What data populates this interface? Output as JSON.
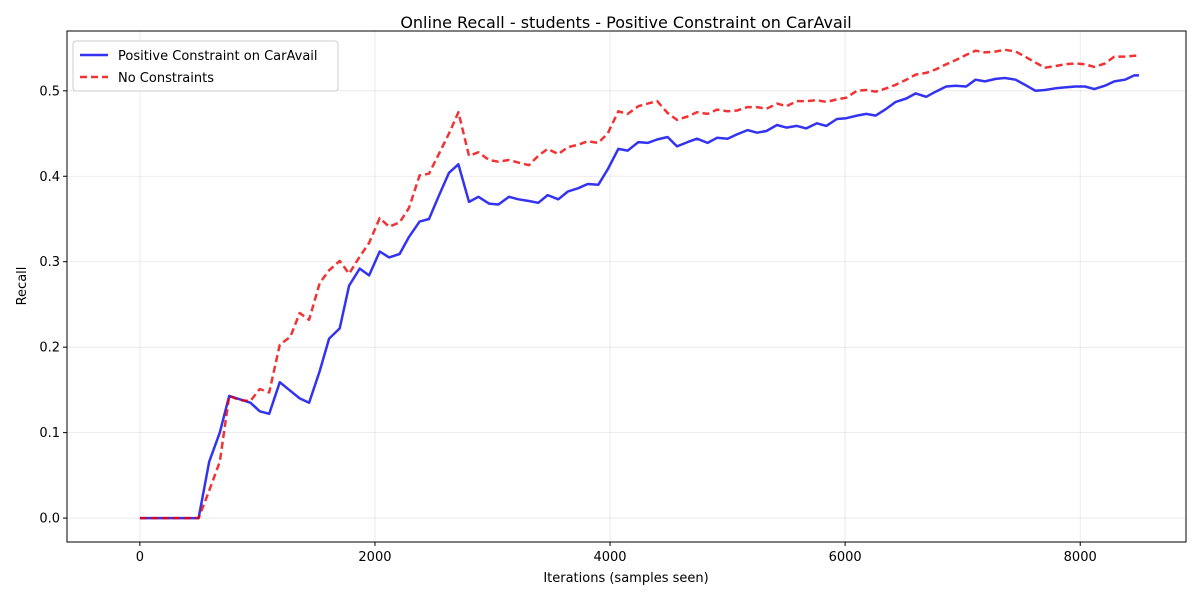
{
  "chart_data": {
    "type": "line",
    "title": "Online Recall - students - Positive Constraint on CarAvail",
    "xlabel": "Iterations (samples seen)",
    "ylabel": "Recall",
    "xlim": [
      -620,
      8900
    ],
    "ylim": [
      -0.028,
      0.57
    ],
    "xticks": [
      0,
      2000,
      4000,
      6000,
      8000
    ],
    "xtick_labels": [
      "0",
      "2000",
      "4000",
      "6000",
      "8000"
    ],
    "yticks": [
      0.0,
      0.1,
      0.2,
      0.3,
      0.4,
      0.5
    ],
    "ytick_labels": [
      "0.0",
      "0.1",
      "0.2",
      "0.3",
      "0.4",
      "0.5"
    ],
    "grid": true,
    "legend_position": "upper-left",
    "series": [
      {
        "name": "Positive Constraint on CarAvail",
        "color": "#0000ee",
        "style": "solid",
        "points": [
          [
            0,
            0
          ],
          [
            100,
            0
          ],
          [
            200,
            0
          ],
          [
            300,
            0
          ],
          [
            400,
            0
          ],
          [
            500,
            0
          ],
          [
            590,
            0.066
          ],
          [
            680,
            0.1
          ],
          [
            760,
            0.143
          ],
          [
            850,
            0.139
          ],
          [
            940,
            0.135
          ],
          [
            1020,
            0.125
          ],
          [
            1100,
            0.122
          ],
          [
            1190,
            0.159
          ],
          [
            1280,
            0.149
          ],
          [
            1360,
            0.14
          ],
          [
            1440,
            0.135
          ],
          [
            1530,
            0.172
          ],
          [
            1610,
            0.21
          ],
          [
            1700,
            0.222
          ],
          [
            1780,
            0.272
          ],
          [
            1870,
            0.292
          ],
          [
            1950,
            0.284
          ],
          [
            2040,
            0.312
          ],
          [
            2120,
            0.305
          ],
          [
            2210,
            0.309
          ],
          [
            2290,
            0.329
          ],
          [
            2380,
            0.347
          ],
          [
            2460,
            0.35
          ],
          [
            2540,
            0.376
          ],
          [
            2630,
            0.404
          ],
          [
            2710,
            0.414
          ],
          [
            2800,
            0.37
          ],
          [
            2880,
            0.376
          ],
          [
            2970,
            0.368
          ],
          [
            3050,
            0.367
          ],
          [
            3140,
            0.376
          ],
          [
            3220,
            0.373
          ],
          [
            3310,
            0.371
          ],
          [
            3390,
            0.369
          ],
          [
            3470,
            0.378
          ],
          [
            3560,
            0.373
          ],
          [
            3640,
            0.382
          ],
          [
            3730,
            0.386
          ],
          [
            3810,
            0.391
          ],
          [
            3900,
            0.39
          ],
          [
            3980,
            0.408
          ],
          [
            4070,
            0.432
          ],
          [
            4150,
            0.43
          ],
          [
            4240,
            0.44
          ],
          [
            4320,
            0.439
          ],
          [
            4400,
            0.443
          ],
          [
            4490,
            0.446
          ],
          [
            4570,
            0.435
          ],
          [
            4660,
            0.44
          ],
          [
            4740,
            0.444
          ],
          [
            4830,
            0.439
          ],
          [
            4910,
            0.445
          ],
          [
            5000,
            0.444
          ],
          [
            5080,
            0.449
          ],
          [
            5170,
            0.454
          ],
          [
            5250,
            0.451
          ],
          [
            5330,
            0.453
          ],
          [
            5420,
            0.46
          ],
          [
            5500,
            0.457
          ],
          [
            5590,
            0.459
          ],
          [
            5670,
            0.456
          ],
          [
            5760,
            0.462
          ],
          [
            5840,
            0.459
          ],
          [
            5930,
            0.467
          ],
          [
            6010,
            0.468
          ],
          [
            6100,
            0.471
          ],
          [
            6180,
            0.473
          ],
          [
            6260,
            0.471
          ],
          [
            6350,
            0.479
          ],
          [
            6430,
            0.487
          ],
          [
            6520,
            0.491
          ],
          [
            6600,
            0.497
          ],
          [
            6690,
            0.493
          ],
          [
            6770,
            0.499
          ],
          [
            6860,
            0.505
          ],
          [
            6940,
            0.506
          ],
          [
            7030,
            0.505
          ],
          [
            7110,
            0.513
          ],
          [
            7190,
            0.511
          ],
          [
            7280,
            0.514
          ],
          [
            7360,
            0.515
          ],
          [
            7450,
            0.513
          ],
          [
            7530,
            0.507
          ],
          [
            7620,
            0.5
          ],
          [
            7700,
            0.501
          ],
          [
            7790,
            0.503
          ],
          [
            7870,
            0.504
          ],
          [
            7960,
            0.505
          ],
          [
            8040,
            0.505
          ],
          [
            8120,
            0.502
          ],
          [
            8210,
            0.506
          ],
          [
            8290,
            0.511
          ],
          [
            8380,
            0.513
          ],
          [
            8460,
            0.518
          ],
          [
            8500,
            0.518
          ]
        ]
      },
      {
        "name": "No Constraints",
        "color": "#ee0000",
        "style": "dashed",
        "points": [
          [
            0,
            0
          ],
          [
            100,
            0
          ],
          [
            200,
            0
          ],
          [
            300,
            0
          ],
          [
            400,
            0
          ],
          [
            500,
            0
          ],
          [
            590,
            0.032
          ],
          [
            680,
            0.066
          ],
          [
            760,
            0.143
          ],
          [
            850,
            0.138
          ],
          [
            940,
            0.137
          ],
          [
            1020,
            0.151
          ],
          [
            1100,
            0.147
          ],
          [
            1190,
            0.203
          ],
          [
            1280,
            0.212
          ],
          [
            1360,
            0.24
          ],
          [
            1440,
            0.232
          ],
          [
            1530,
            0.275
          ],
          [
            1610,
            0.29
          ],
          [
            1700,
            0.301
          ],
          [
            1780,
            0.286
          ],
          [
            1870,
            0.306
          ],
          [
            1950,
            0.322
          ],
          [
            2040,
            0.351
          ],
          [
            2120,
            0.341
          ],
          [
            2210,
            0.346
          ],
          [
            2290,
            0.363
          ],
          [
            2380,
            0.401
          ],
          [
            2460,
            0.403
          ],
          [
            2540,
            0.425
          ],
          [
            2630,
            0.45
          ],
          [
            2710,
            0.475
          ],
          [
            2800,
            0.424
          ],
          [
            2880,
            0.428
          ],
          [
            2970,
            0.419
          ],
          [
            3050,
            0.417
          ],
          [
            3140,
            0.419
          ],
          [
            3220,
            0.416
          ],
          [
            3310,
            0.413
          ],
          [
            3390,
            0.424
          ],
          [
            3470,
            0.432
          ],
          [
            3560,
            0.426
          ],
          [
            3640,
            0.434
          ],
          [
            3730,
            0.437
          ],
          [
            3810,
            0.441
          ],
          [
            3900,
            0.439
          ],
          [
            3980,
            0.45
          ],
          [
            4070,
            0.476
          ],
          [
            4150,
            0.473
          ],
          [
            4240,
            0.482
          ],
          [
            4320,
            0.485
          ],
          [
            4400,
            0.488
          ],
          [
            4490,
            0.474
          ],
          [
            4570,
            0.466
          ],
          [
            4660,
            0.47
          ],
          [
            4740,
            0.475
          ],
          [
            4830,
            0.473
          ],
          [
            4910,
            0.478
          ],
          [
            5000,
            0.476
          ],
          [
            5080,
            0.477
          ],
          [
            5170,
            0.481
          ],
          [
            5250,
            0.481
          ],
          [
            5330,
            0.479
          ],
          [
            5420,
            0.485
          ],
          [
            5500,
            0.482
          ],
          [
            5590,
            0.488
          ],
          [
            5670,
            0.488
          ],
          [
            5760,
            0.489
          ],
          [
            5840,
            0.487
          ],
          [
            5930,
            0.49
          ],
          [
            6010,
            0.492
          ],
          [
            6100,
            0.5
          ],
          [
            6180,
            0.501
          ],
          [
            6260,
            0.499
          ],
          [
            6350,
            0.503
          ],
          [
            6430,
            0.507
          ],
          [
            6520,
            0.513
          ],
          [
            6600,
            0.519
          ],
          [
            6690,
            0.521
          ],
          [
            6770,
            0.525
          ],
          [
            6860,
            0.531
          ],
          [
            6940,
            0.536
          ],
          [
            7030,
            0.542
          ],
          [
            7110,
            0.547
          ],
          [
            7190,
            0.545
          ],
          [
            7280,
            0.546
          ],
          [
            7360,
            0.548
          ],
          [
            7450,
            0.546
          ],
          [
            7530,
            0.54
          ],
          [
            7620,
            0.533
          ],
          [
            7700,
            0.527
          ],
          [
            7790,
            0.529
          ],
          [
            7870,
            0.531
          ],
          [
            7960,
            0.532
          ],
          [
            8040,
            0.531
          ],
          [
            8120,
            0.528
          ],
          [
            8210,
            0.532
          ],
          [
            8290,
            0.54
          ],
          [
            8380,
            0.54
          ],
          [
            8460,
            0.541
          ],
          [
            8500,
            0.541
          ]
        ]
      }
    ]
  }
}
